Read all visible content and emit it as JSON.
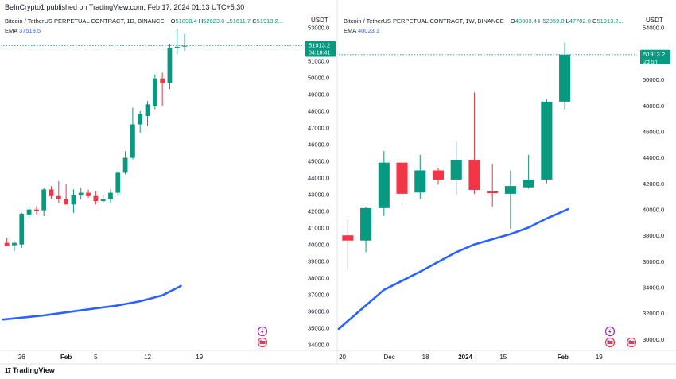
{
  "header": {
    "published_text": "BeInCrypto1 published on TradingView.com, Feb 17, 2024 01:13 UTC+5:30"
  },
  "footer": {
    "logo_text": "TradingView",
    "logo_glyph": "17"
  },
  "colors": {
    "up": "#089981",
    "down": "#f23645",
    "ema": "#2962ff",
    "price_line": "#089981"
  },
  "chart_data": [
    {
      "type": "candlestick",
      "title": "Bitcoin / TetherUS PERPETUAL CONTRACT, 1D, BINANCE",
      "ohlc_labels": {
        "o": "O",
        "o_val": "51898.4",
        "h": "H",
        "h_val": "52623.0",
        "l": "L",
        "l_val": "51611.7",
        "c": "C",
        "c_val": "51913.2..."
      },
      "ema_label": "EMA",
      "ema_value": "37513.5",
      "axis_unit": "USDT",
      "price_tag": "51913.2",
      "countdown": "04:18:41",
      "ylim": [
        33700,
        53700
      ],
      "yticks": [
        34000,
        35000,
        36000,
        37000,
        38000,
        39000,
        40000,
        41000,
        42000,
        43000,
        44000,
        45000,
        46000,
        47000,
        48000,
        49000,
        50000,
        51000,
        52000,
        53000
      ],
      "ytick_labels": [
        "34000.0",
        "35000.0",
        "36000.0",
        "37000.0",
        "38000.0",
        "39000.0",
        "40000.0",
        "41000.0",
        "42000.0",
        "43000.0",
        "44000.0",
        "45000.0",
        "46000.0",
        "47000.0",
        "48000.0",
        "49000.0",
        "50000.0",
        "51000.0",
        "52000.0",
        "53000.0"
      ],
      "xlim": [
        -0.5,
        40
      ],
      "xticks": [
        {
          "i": 2,
          "label": "26"
        },
        {
          "i": 8,
          "label": "Feb"
        },
        {
          "i": 12,
          "label": "5"
        },
        {
          "i": 19,
          "label": "12"
        },
        {
          "i": 26,
          "label": "19"
        }
      ],
      "candles": [
        {
          "o": 40100,
          "h": 40400,
          "l": 39900,
          "c": 39900
        },
        {
          "o": 39950,
          "h": 40200,
          "l": 39600,
          "c": 40100
        },
        {
          "o": 40000,
          "h": 41900,
          "l": 39800,
          "c": 41850
        },
        {
          "o": 41800,
          "h": 42300,
          "l": 41600,
          "c": 42100
        },
        {
          "o": 42100,
          "h": 42300,
          "l": 41800,
          "c": 42000
        },
        {
          "o": 42050,
          "h": 43400,
          "l": 41700,
          "c": 43300
        },
        {
          "o": 43300,
          "h": 43500,
          "l": 42700,
          "c": 42900
        },
        {
          "o": 42900,
          "h": 43800,
          "l": 42500,
          "c": 42700
        },
        {
          "o": 42700,
          "h": 43600,
          "l": 42500,
          "c": 42400
        },
        {
          "o": 42400,
          "h": 43300,
          "l": 41900,
          "c": 42950
        },
        {
          "o": 42950,
          "h": 43400,
          "l": 42700,
          "c": 43100
        },
        {
          "o": 43100,
          "h": 43300,
          "l": 42800,
          "c": 42900
        },
        {
          "o": 42900,
          "h": 43200,
          "l": 42400,
          "c": 42600
        },
        {
          "o": 42600,
          "h": 43000,
          "l": 42500,
          "c": 42700
        },
        {
          "o": 42700,
          "h": 43300,
          "l": 42500,
          "c": 43100
        },
        {
          "o": 43100,
          "h": 44400,
          "l": 42900,
          "c": 44300
        },
        {
          "o": 44300,
          "h": 45600,
          "l": 44200,
          "c": 45200
        },
        {
          "o": 45200,
          "h": 48200,
          "l": 45100,
          "c": 47200
        },
        {
          "o": 47200,
          "h": 48000,
          "l": 46700,
          "c": 47800
        },
        {
          "o": 47700,
          "h": 48600,
          "l": 47100,
          "c": 48400
        },
        {
          "o": 48300,
          "h": 50200,
          "l": 48100,
          "c": 49950
        },
        {
          "o": 49950,
          "h": 50300,
          "l": 48300,
          "c": 49700
        },
        {
          "o": 49700,
          "h": 52000,
          "l": 49300,
          "c": 51800
        },
        {
          "o": 51800,
          "h": 52900,
          "l": 51400,
          "c": 51850
        },
        {
          "o": 51898,
          "h": 52623,
          "l": 51611,
          "c": 51913
        }
      ],
      "ema_points": [
        [
          -0.5,
          35500
        ],
        [
          5,
          35750
        ],
        [
          10,
          36050
        ],
        [
          15,
          36350
        ],
        [
          18,
          36600
        ],
        [
          21,
          36950
        ],
        [
          23.5,
          37513
        ]
      ],
      "last_price": 51913.2
    },
    {
      "type": "candlestick",
      "title": "Bitcoin / TetherUS PERPETUAL CONTRACT, 1W, BINANCE",
      "ohlc_labels": {
        "o": "O",
        "o_val": "48303.4",
        "h": "H",
        "h_val": "52859.0",
        "l": "L",
        "l_val": "47702.0",
        "c": "C",
        "c_val": "51913.2..."
      },
      "ema_label": "EMA",
      "ema_value": "40023.1",
      "axis_unit": "USDT",
      "price_tag": "51913.2",
      "countdown": "2d 5h",
      "ylim": [
        29200,
        54900
      ],
      "yticks": [
        30000,
        32000,
        34000,
        36000,
        38000,
        40000,
        42000,
        44000,
        46000,
        48000,
        50000,
        52000,
        54000
      ],
      "ytick_labels": [
        "30000.0",
        "32000.0",
        "34000.0",
        "36000.0",
        "38000.0",
        "40000.0",
        "42000.0",
        "44000.0",
        "46000.0",
        "48000.0",
        "50000.0",
        "52000.0",
        "54000.0"
      ],
      "xlim": [
        -0.5,
        16
      ],
      "xticks": [
        {
          "i": -0.3,
          "label": "20"
        },
        {
          "i": 2.3,
          "label": "Dec"
        },
        {
          "i": 4.3,
          "label": "18"
        },
        {
          "i": 6.5,
          "label": "2024"
        },
        {
          "i": 8.6,
          "label": "15"
        },
        {
          "i": 11.9,
          "label": "Feb"
        },
        {
          "i": 13.9,
          "label": "19"
        }
      ],
      "candles": [
        {
          "o": 38000,
          "h": 39200,
          "l": 35400,
          "c": 37600
        },
        {
          "o": 37600,
          "h": 40200,
          "l": 36700,
          "c": 40100
        },
        {
          "o": 40100,
          "h": 44500,
          "l": 39500,
          "c": 43600
        },
        {
          "o": 43600,
          "h": 43700,
          "l": 40300,
          "c": 41200
        },
        {
          "o": 41300,
          "h": 44200,
          "l": 40800,
          "c": 43000
        },
        {
          "o": 43000,
          "h": 43200,
          "l": 41900,
          "c": 42300
        },
        {
          "o": 42300,
          "h": 45200,
          "l": 41100,
          "c": 43800
        },
        {
          "o": 43800,
          "h": 49000,
          "l": 41200,
          "c": 41500
        },
        {
          "o": 41400,
          "h": 43500,
          "l": 40200,
          "c": 41250
        },
        {
          "o": 41200,
          "h": 43000,
          "l": 38500,
          "c": 41800
        },
        {
          "o": 41700,
          "h": 44200,
          "l": 41600,
          "c": 42300
        },
        {
          "o": 42300,
          "h": 48500,
          "l": 42000,
          "c": 48300
        },
        {
          "o": 48300,
          "h": 52859,
          "l": 47702,
          "c": 51913
        }
      ],
      "ema_points": [
        [
          -0.5,
          30800
        ],
        [
          1,
          32600
        ],
        [
          2,
          33800
        ],
        [
          4,
          35200
        ],
        [
          6,
          36700
        ],
        [
          7,
          37300
        ],
        [
          9,
          38100
        ],
        [
          10,
          38600
        ],
        [
          11,
          39300
        ],
        [
          12.2,
          40023
        ]
      ],
      "last_price": 51913.2
    }
  ]
}
